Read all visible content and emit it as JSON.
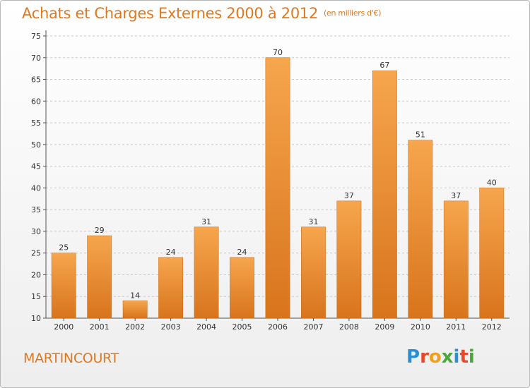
{
  "header": {
    "title": "Achats et Charges Externes 2000 à 2012",
    "subtitle": "(en milliers d'€)"
  },
  "footer": {
    "commune": "MARTINCOURT",
    "logo_text": "Proxiti",
    "logo_colors": [
      "#2a8fd0",
      "#e8492a",
      "#f0a020",
      "#4aa83a",
      "#2a8fd0",
      "#e8492a",
      "#4aa83a"
    ]
  },
  "colors": {
    "accent": "#e07820",
    "bar_top": "#f6a64e",
    "bar_bottom": "#d8741c"
  },
  "chart_data": {
    "type": "bar",
    "categories": [
      "2000",
      "2001",
      "2002",
      "2003",
      "2004",
      "2005",
      "2006",
      "2007",
      "2008",
      "2009",
      "2010",
      "2011",
      "2012"
    ],
    "values": [
      25,
      29,
      14,
      24,
      31,
      24,
      70,
      31,
      37,
      67,
      51,
      37,
      40
    ],
    "ylim": [
      10,
      75
    ],
    "yticks": [
      10,
      15,
      20,
      25,
      30,
      35,
      40,
      45,
      50,
      55,
      60,
      65,
      70,
      75
    ],
    "grid": "horizontal-dashed",
    "data_labels": true
  }
}
